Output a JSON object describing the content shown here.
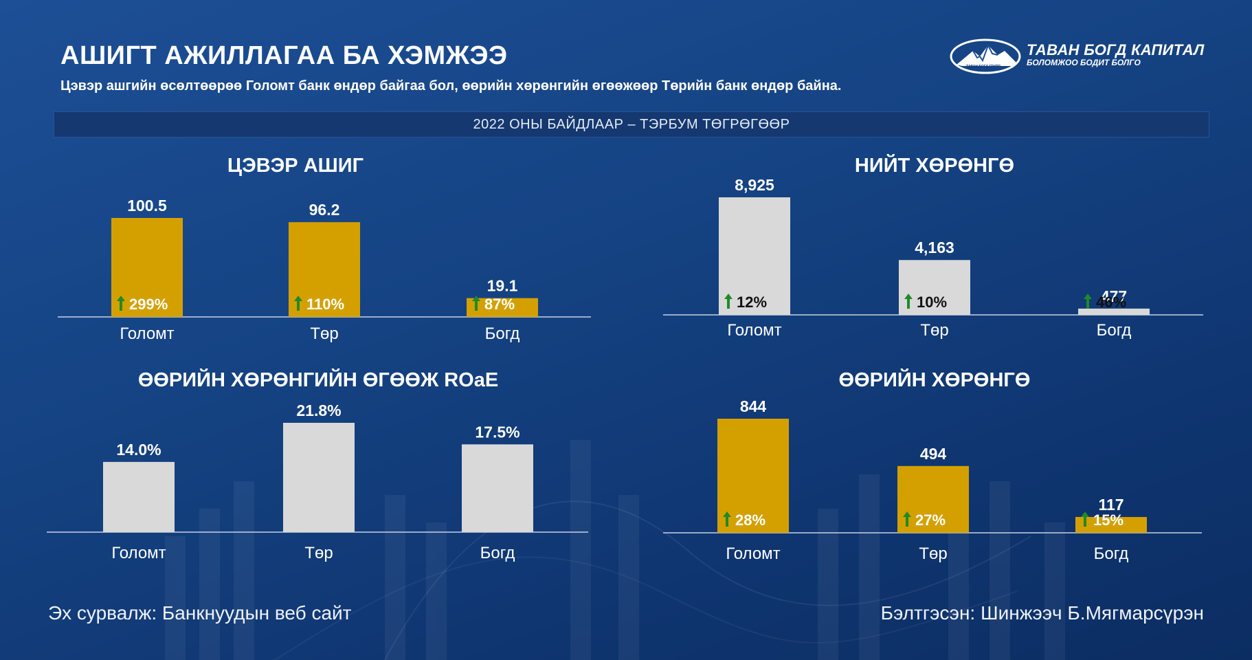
{
  "header": {
    "title": "АШИГТ АЖИЛЛАГАА БА ХЭМЖЭЭ",
    "subtitle": "Цэвэр ашгийн өсөлтөөрөө Голомт банк өндөр байгаа бол, өөрийн хөрөнгийн өгөөжөөр Төрийн банк өндөр байна."
  },
  "logo": {
    "name": "ТАВАН БОГД КАПИТАЛ",
    "tagline": "БОЛОМЖОО БОДИТ БОЛГО",
    "group": "ТАВАН БОГД ГРУПП"
  },
  "banner": "2022 ОНЫ БАЙДЛААР – ТЭРБУМ ТӨГРӨГӨӨР",
  "colors": {
    "gold": "#d4a000",
    "grey": "#d9d9d9",
    "arrow": "#1f8a2a",
    "axis": "#c8d2e4"
  },
  "chart_data": [
    {
      "id": "net-profit",
      "type": "bar",
      "title": "ЦЭВЭР АШИГ",
      "categories": [
        "Голомт",
        "Төр",
        "Богд"
      ],
      "values": [
        100.5,
        96.2,
        19.1
      ],
      "value_labels": [
        "100.5",
        "96.2",
        "19.1"
      ],
      "growth_labels": [
        "299%",
        "110%",
        "87%"
      ],
      "bar_color": "gold",
      "growth_text_color": "#ffffff",
      "ylim": [
        0,
        100.5
      ]
    },
    {
      "id": "total-assets",
      "type": "bar",
      "title": "НИЙТ ХӨРӨНГӨ",
      "categories": [
        "Голомт",
        "Төр",
        "Богд"
      ],
      "values": [
        8925,
        4163,
        477
      ],
      "value_labels": [
        "8,925",
        "4,163",
        "477"
      ],
      "growth_labels": [
        "12%",
        "10%",
        "46%"
      ],
      "bar_color": "grey",
      "growth_text_color": "#111111",
      "ylim": [
        0,
        8925
      ]
    },
    {
      "id": "roae",
      "type": "bar",
      "title": "ӨӨРИЙН ХӨРӨНГИЙН ӨГӨӨЖ ROaE",
      "categories": [
        "Голомт",
        "Төр",
        "Богд"
      ],
      "values": [
        14.0,
        21.8,
        17.5
      ],
      "value_labels": [
        "14.0%",
        "21.8%",
        "17.5%"
      ],
      "growth_labels": [],
      "bar_color": "grey",
      "growth_text_color": "#111111",
      "ylim": [
        0,
        21.8
      ]
    },
    {
      "id": "equity",
      "type": "bar",
      "title": "ӨӨРИЙН ХӨРӨНГӨ",
      "categories": [
        "Голомт",
        "Төр",
        "Богд"
      ],
      "values": [
        844,
        494,
        117
      ],
      "value_labels": [
        "844",
        "494",
        "117"
      ],
      "growth_labels": [
        "28%",
        "27%",
        "15%"
      ],
      "bar_color": "gold",
      "growth_text_color": "#ffffff",
      "ylim": [
        0,
        844
      ]
    }
  ],
  "footer": {
    "source": "Эх сурвалж: Банкнуудын веб сайт",
    "author": "Бэлтгэсэн: Шинжээч Б.Мягмарсүрэн"
  }
}
